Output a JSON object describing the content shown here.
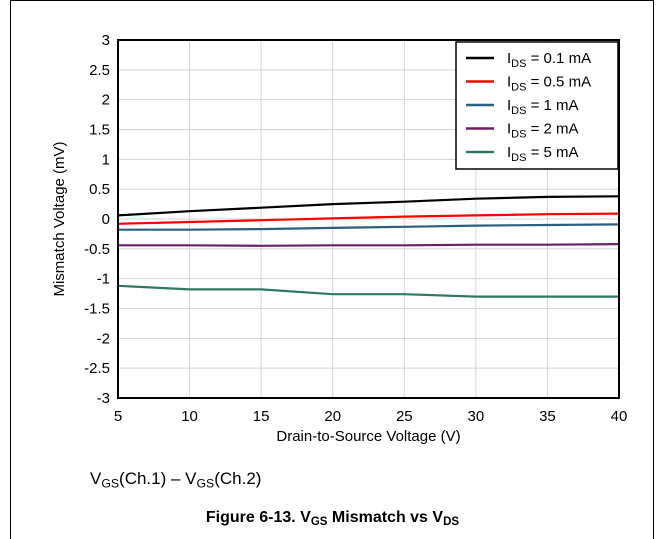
{
  "chart_data": {
    "type": "line",
    "xlabel": "Drain-to-Source Voltage (V)",
    "ylabel": "Mismatch Voltage (mV)",
    "xlim": [
      5,
      40
    ],
    "ylim": [
      -3,
      3
    ],
    "x_ticks": [
      5,
      10,
      15,
      20,
      25,
      30,
      35,
      40
    ],
    "y_ticks": [
      3,
      2.5,
      2,
      1.5,
      1,
      0.5,
      0,
      -0.5,
      -1,
      -1.5,
      -2,
      -2.5,
      -3
    ],
    "x_tick_labels": [
      "5",
      "10",
      "15",
      "20",
      "25",
      "30",
      "35",
      "40"
    ],
    "y_tick_labels": [
      "3",
      "2.5",
      "2",
      "1.5",
      "1",
      "0.5",
      "0",
      "-0.5",
      "-1",
      "-1.5",
      "-2",
      "-2.5",
      "-3"
    ],
    "grid": true,
    "legend_position": "top-right",
    "series": [
      {
        "name": "I_DS = 0.1 mA",
        "legend_main": "I",
        "legend_sub": "DS",
        "legend_rest": " = 0.1 mA",
        "color": "#000000",
        "x": [
          5,
          10,
          15,
          20,
          25,
          30,
          35,
          40
        ],
        "y": [
          0.06,
          0.13,
          0.19,
          0.25,
          0.29,
          0.34,
          0.37,
          0.38
        ]
      },
      {
        "name": "I_DS = 0.5 mA",
        "legend_main": "I",
        "legend_sub": "DS",
        "legend_rest": " = 0.5 mA",
        "color": "#ff0000",
        "x": [
          5,
          10,
          15,
          20,
          25,
          30,
          35,
          40
        ],
        "y": [
          -0.08,
          -0.05,
          -0.02,
          0.01,
          0.04,
          0.06,
          0.08,
          0.09
        ]
      },
      {
        "name": "I_DS = 1 mA",
        "legend_main": "I",
        "legend_sub": "DS",
        "legend_rest": " = 1 mA",
        "color": "#2a5f7e",
        "x": [
          5,
          10,
          15,
          20,
          25,
          30,
          35,
          40
        ],
        "y": [
          -0.18,
          -0.18,
          -0.17,
          -0.15,
          -0.13,
          -0.11,
          -0.1,
          -0.09
        ]
      },
      {
        "name": "I_DS = 2 mA",
        "legend_main": "I",
        "legend_sub": "DS",
        "legend_rest": " = 2 mA",
        "color": "#6b1f6b",
        "x": [
          5,
          10,
          15,
          20,
          25,
          30,
          35,
          40
        ],
        "y": [
          -0.44,
          -0.44,
          -0.45,
          -0.44,
          -0.44,
          -0.43,
          -0.43,
          -0.42
        ]
      },
      {
        "name": "I_DS = 5 mA",
        "legend_main": "I",
        "legend_sub": "DS",
        "legend_rest": " = 5 mA",
        "color": "#2e7a5a",
        "x": [
          5,
          10,
          15,
          20,
          25,
          30,
          35,
          40
        ],
        "y": [
          -1.12,
          -1.18,
          -1.18,
          -1.26,
          -1.26,
          -1.3,
          -1.3,
          -1.3
        ]
      }
    ]
  },
  "note": {
    "v1": "V",
    "sub1": "GS",
    "mid": "(Ch.1) – V",
    "sub2": "GS",
    "end": "(Ch.2)"
  },
  "caption": {
    "prefix": "Figure 6-13. V",
    "sub1": "GS",
    "middle": " Mismatch vs V",
    "sub2": "DS"
  }
}
